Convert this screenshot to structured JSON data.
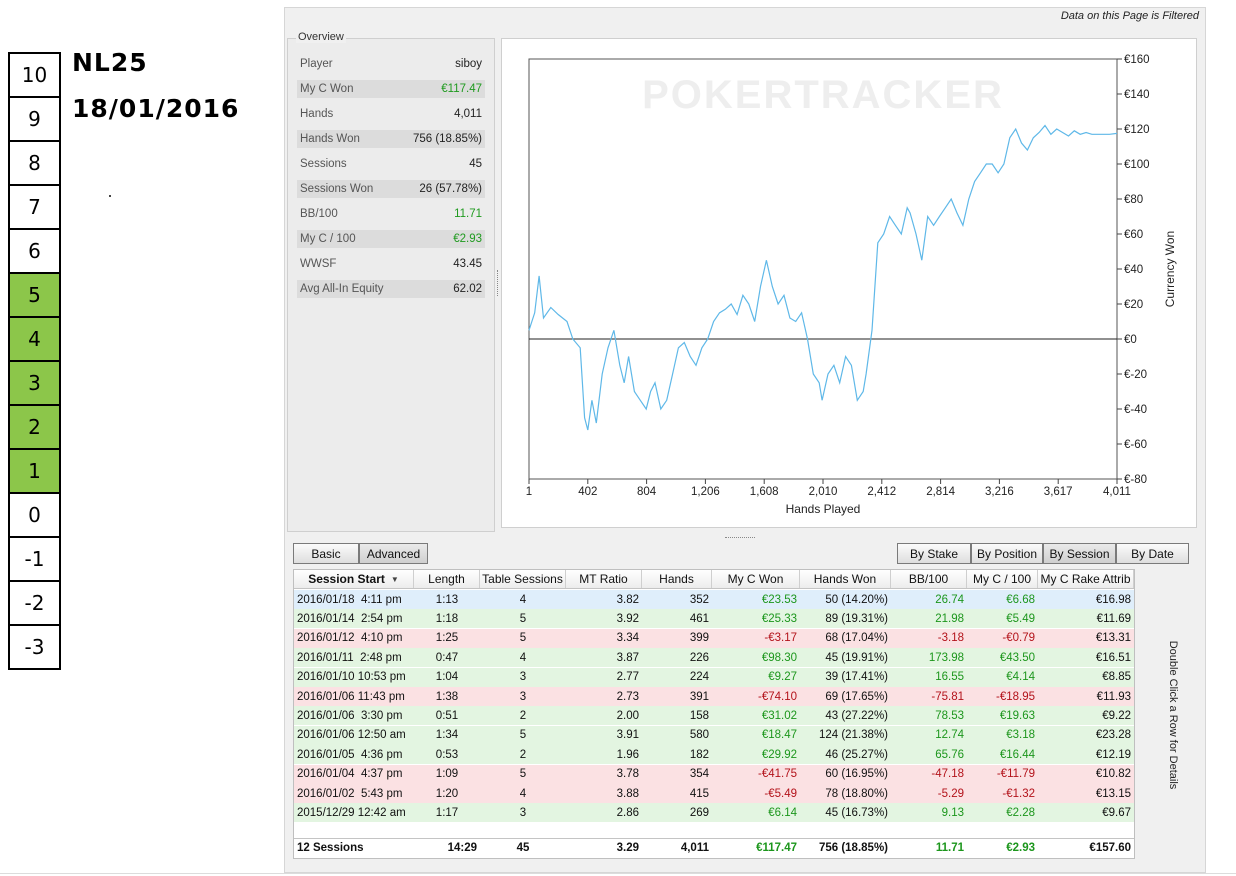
{
  "scale": {
    "cells": [
      "10",
      "9",
      "8",
      "7",
      "6",
      "5",
      "4",
      "3",
      "2",
      "1",
      "0",
      "-1",
      "-2",
      "-3"
    ],
    "highlight": [
      "5",
      "4",
      "3",
      "2",
      "1"
    ],
    "highlight_color": "#8cc64a"
  },
  "stake_label": "NL25",
  "date_label": "18/01/2016",
  "filter_note": "Data on this Page is Filtered",
  "overview": {
    "legend": "Overview",
    "rows": [
      {
        "label": "Player",
        "value": "siboy",
        "color": "normal"
      },
      {
        "label": "My C Won",
        "value": "€117.47",
        "color": "green"
      },
      {
        "label": "Hands",
        "value": "4,011",
        "color": "normal"
      },
      {
        "label": "Hands Won",
        "value": "756 (18.85%)",
        "color": "normal"
      },
      {
        "label": "Sessions",
        "value": "45",
        "color": "normal"
      },
      {
        "label": "Sessions Won",
        "value": "26 (57.78%)",
        "color": "normal"
      },
      {
        "label": "BB/100",
        "value": "11.71",
        "color": "green"
      },
      {
        "label": "My C / 100",
        "value": "€2.93",
        "color": "green"
      },
      {
        "label": "WWSF",
        "value": "43.45",
        "color": "normal"
      },
      {
        "label": "Avg All-In Equity",
        "value": "62.02",
        "color": "normal"
      }
    ]
  },
  "chart_data": {
    "type": "line",
    "watermark": "POKERTRACKER",
    "xlabel": "Hands Played",
    "ylabel": "Currency Won",
    "x_ticks": [
      "1",
      "402",
      "804",
      "1,206",
      "1,608",
      "2,010",
      "2,412",
      "2,814",
      "3,216",
      "3,617",
      "4,011"
    ],
    "y_ticks": [
      "€160",
      "€140",
      "€120",
      "€100",
      "€80",
      "€60",
      "€40",
      "€20",
      "€0",
      "€-20",
      "€-40",
      "€-60",
      "€-80"
    ],
    "xlim": [
      1,
      4011
    ],
    "ylim": [
      -80,
      160
    ],
    "line_color": "#5fb8e8",
    "series": [
      {
        "x": [
          1,
          40,
          70,
          100,
          150,
          200,
          260,
          300,
          350,
          380,
          402,
          430,
          460,
          500,
          540,
          580,
          620,
          650,
          680,
          720,
          760,
          800,
          830,
          860,
          900,
          940,
          980,
          1020,
          1060,
          1100,
          1140,
          1180,
          1220,
          1260,
          1300,
          1340,
          1380,
          1420,
          1460,
          1500,
          1540,
          1580,
          1620,
          1660,
          1700,
          1740,
          1780,
          1820,
          1860,
          1900,
          1940,
          1980,
          2000,
          2040,
          2080,
          2120,
          2160,
          2200,
          2240,
          2280,
          2300,
          2340,
          2380,
          2420,
          2460,
          2500,
          2540,
          2580,
          2600,
          2640,
          2680,
          2720,
          2760,
          2800,
          2840,
          2880,
          2920,
          2960,
          3000,
          3040,
          3080,
          3120,
          3160,
          3200,
          3240,
          3280,
          3320,
          3360,
          3400,
          3440,
          3480,
          3520,
          3560,
          3600,
          3640,
          3680,
          3720,
          3760,
          3800,
          3840,
          3880,
          3920,
          3960,
          4011
        ],
        "y": [
          5,
          15,
          36,
          12,
          18,
          14,
          10,
          0,
          -5,
          -45,
          -52,
          -35,
          -48,
          -20,
          -5,
          5,
          -15,
          -25,
          -10,
          -30,
          -35,
          -40,
          -30,
          -25,
          -40,
          -35,
          -20,
          -5,
          -2,
          -10,
          -15,
          -5,
          0,
          10,
          15,
          17,
          20,
          14,
          25,
          20,
          10,
          30,
          45,
          30,
          20,
          25,
          12,
          10,
          15,
          0,
          -20,
          -25,
          -35,
          -20,
          -15,
          -25,
          -10,
          -15,
          -35,
          -30,
          -20,
          5,
          55,
          60,
          70,
          65,
          60,
          75,
          72,
          60,
          45,
          70,
          65,
          70,
          75,
          80,
          72,
          65,
          80,
          90,
          95,
          100,
          100,
          95,
          100,
          115,
          120,
          112,
          108,
          115,
          118,
          122,
          117,
          120,
          118,
          116,
          119,
          117,
          118,
          117,
          117,
          117,
          117,
          117.47
        ]
      }
    ]
  },
  "table_tabs": {
    "basic": "Basic",
    "advanced": "Advanced"
  },
  "group_tabs": {
    "by_stake": "By Stake",
    "by_position": "By Position",
    "by_session": "By Session",
    "by_date": "By Date"
  },
  "table": {
    "headers": [
      "Session Start",
      "Length",
      "Table Sessions",
      "MT Ratio",
      "Hands",
      "My C Won",
      "Hands Won",
      "BB/100",
      "My C / 100",
      "My C Rake Attrib"
    ],
    "rows": [
      {
        "type": "sel",
        "cells": [
          "2016/01/18  4:11 pm",
          "1:13",
          "4",
          "3.82",
          "352",
          "€23.53",
          "50 (14.20%)",
          "26.74",
          "€6.68",
          "€16.98"
        ]
      },
      {
        "type": "win",
        "cells": [
          "2016/01/14  2:54 pm",
          "1:18",
          "5",
          "3.92",
          "461",
          "€25.33",
          "89 (19.31%)",
          "21.98",
          "€5.49",
          "€11.69"
        ]
      },
      {
        "type": "loss",
        "cells": [
          "2016/01/12  4:10 pm",
          "1:25",
          "5",
          "3.34",
          "399",
          "-€3.17",
          "68 (17.04%)",
          "-3.18",
          "-€0.79",
          "€13.31"
        ]
      },
      {
        "type": "win",
        "cells": [
          "2016/01/11  2:48 pm",
          "0:47",
          "4",
          "3.87",
          "226",
          "€98.30",
          "45 (19.91%)",
          "173.98",
          "€43.50",
          "€16.51"
        ]
      },
      {
        "type": "win",
        "cells": [
          "2016/01/10 10:53 pm",
          "1:04",
          "3",
          "2.77",
          "224",
          "€9.27",
          "39 (17.41%)",
          "16.55",
          "€4.14",
          "€8.85"
        ]
      },
      {
        "type": "loss",
        "cells": [
          "2016/01/06 11:43 pm",
          "1:38",
          "3",
          "2.73",
          "391",
          "-€74.10",
          "69 (17.65%)",
          "-75.81",
          "-€18.95",
          "€11.93"
        ]
      },
      {
        "type": "win",
        "cells": [
          "2016/01/06  3:30 pm",
          "0:51",
          "2",
          "2.00",
          "158",
          "€31.02",
          "43 (27.22%)",
          "78.53",
          "€19.63",
          "€9.22"
        ]
      },
      {
        "type": "win",
        "cells": [
          "2016/01/06 12:50 am",
          "1:34",
          "5",
          "3.91",
          "580",
          "€18.47",
          "124 (21.38%)",
          "12.74",
          "€3.18",
          "€23.28"
        ]
      },
      {
        "type": "win",
        "cells": [
          "2016/01/05  4:36 pm",
          "0:53",
          "2",
          "1.96",
          "182",
          "€29.92",
          "46 (25.27%)",
          "65.76",
          "€16.44",
          "€12.19"
        ]
      },
      {
        "type": "loss",
        "cells": [
          "2016/01/04  4:37 pm",
          "1:09",
          "5",
          "3.78",
          "354",
          "-€41.75",
          "60 (16.95%)",
          "-47.18",
          "-€11.79",
          "€10.82"
        ]
      },
      {
        "type": "loss",
        "cells": [
          "2016/01/02  5:43 pm",
          "1:20",
          "4",
          "3.88",
          "415",
          "-€5.49",
          "78 (18.80%)",
          "-5.29",
          "-€1.32",
          "€13.15"
        ]
      },
      {
        "type": "win",
        "cells": [
          "2015/12/29 12:42 am",
          "1:17",
          "3",
          "2.86",
          "269",
          "€6.14",
          "45 (16.73%)",
          "9.13",
          "€2.28",
          "€9.67"
        ]
      }
    ],
    "total": [
      "12 Sessions",
      "14:29",
      "45",
      "3.29",
      "4,011",
      "€117.47",
      "756 (18.85%)",
      "11.71",
      "€2.93",
      "€157.60"
    ]
  },
  "side_note": "Double Click a Row for Details"
}
